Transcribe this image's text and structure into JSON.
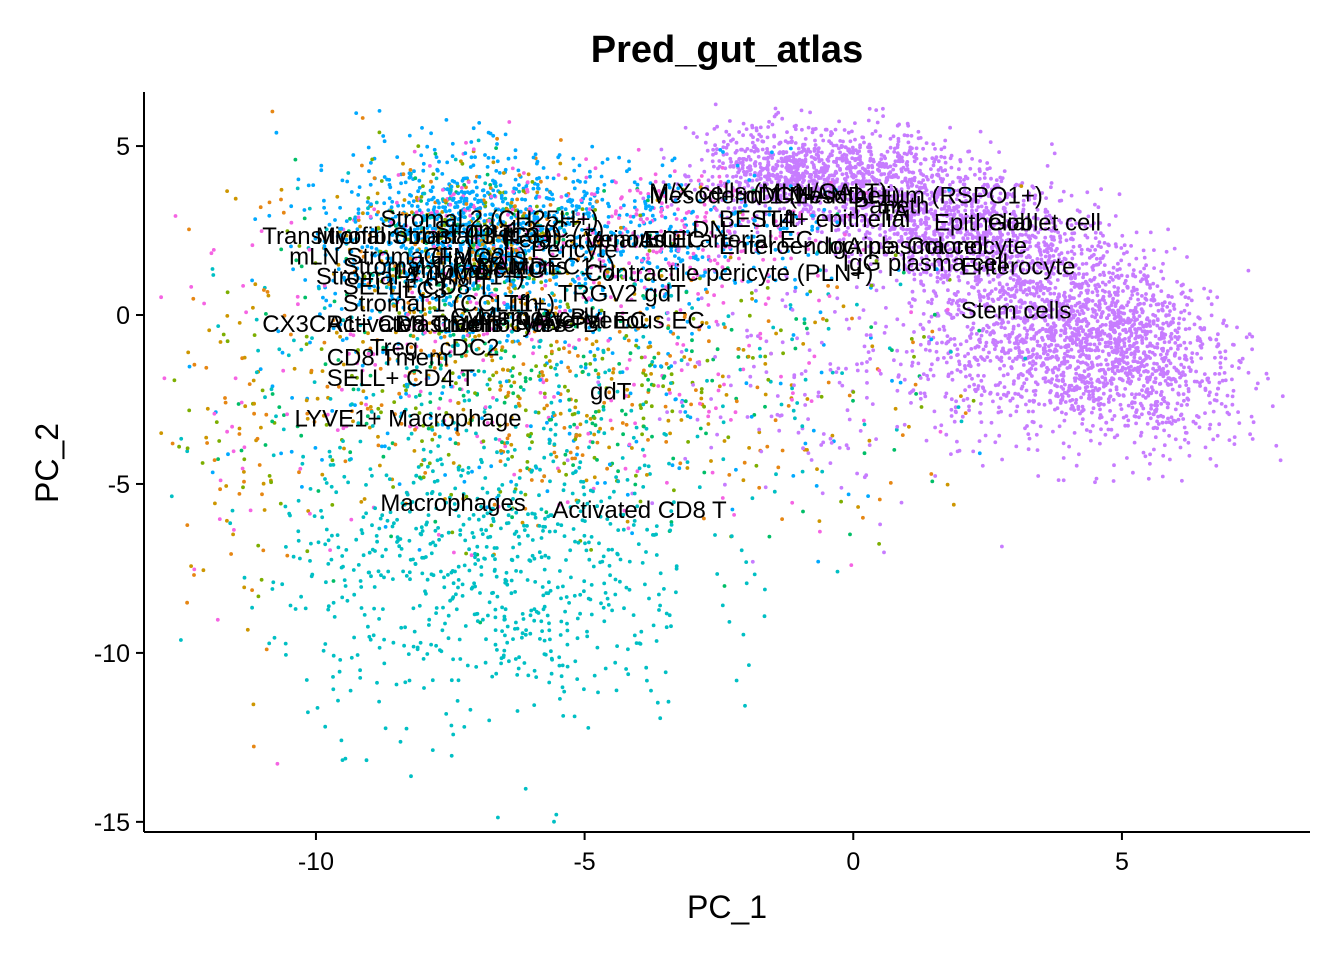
{
  "chart_data": {
    "type": "scatter",
    "title": "Pred_gut_atlas",
    "xlabel": "PC_1",
    "ylabel": "PC_2",
    "xlim": [
      -13.2,
      8.5
    ],
    "ylim": [
      -15.3,
      6.6
    ],
    "xticks": [
      -10,
      -5,
      0,
      5
    ],
    "yticks": [
      5,
      0,
      -5,
      -10,
      -15
    ],
    "x_tick_labels": [
      "-10",
      "-5",
      "0",
      "5"
    ],
    "y_tick_labels": [
      "5",
      "0",
      "-5",
      "-10",
      "-15"
    ],
    "grid": false,
    "legend": "none",
    "point_colors": {
      "enterocyte_stem": "#C77CFF",
      "macrophage": "#00BFC4",
      "stromal": "#00A9FF",
      "mixed_pink": "#F564E3",
      "mixed_orange": "#E68613",
      "mixed_olive": "#CD9600",
      "mixed_green": "#7CAE00",
      "mixed_teal": "#00BE67"
    },
    "cluster_labels": [
      {
        "text": "M/X cells (MLN/GALT)",
        "x": -3.8,
        "y": 3.4
      },
      {
        "text": "Mesoderm 1 (HAND1+)",
        "x": -3.8,
        "y": 3.3
      },
      {
        "text": "cDC1",
        "x": -2.0,
        "y": 3.3
      },
      {
        "text": "Mesothelium (RSPO1+)",
        "x": -1.2,
        "y": 3.3
      },
      {
        "text": "Paneth",
        "x": 0.0,
        "y": 3.0
      },
      {
        "text": "TA",
        "x": 0.5,
        "y": 2.8
      },
      {
        "text": "Epithelial",
        "x": 1.5,
        "y": 2.5
      },
      {
        "text": "Goblet cell",
        "x": 2.5,
        "y": 2.5
      },
      {
        "text": "DN",
        "x": -3.0,
        "y": 2.3
      },
      {
        "text": "BEST4+ epithelial",
        "x": -2.5,
        "y": 2.6
      },
      {
        "text": "Tuft",
        "x": -1.8,
        "y": 2.6
      },
      {
        "text": "Stromal 2 (CH25H+)",
        "x": -8.8,
        "y": 2.6
      },
      {
        "text": "Stromal 3 (C7+)",
        "x": -7.8,
        "y": 2.3
      },
      {
        "text": "Transitional Stromal 3 (C3+)",
        "x": -11.0,
        "y": 2.1
      },
      {
        "text": "Myofibroblast (HHIP+)",
        "x": -10.0,
        "y": 2.1
      },
      {
        "text": "Fetal arterial EC",
        "x": -6.5,
        "y": 2.0
      },
      {
        "text": "Venous EC",
        "x": -5.0,
        "y": 2.0
      },
      {
        "text": "Adult arterial EC",
        "x": -4.0,
        "y": 2.0
      },
      {
        "text": "Enteroendocrine",
        "x": -2.5,
        "y": 1.8
      },
      {
        "text": "Colonocyte",
        "x": 1.0,
        "y": 1.8
      },
      {
        "text": "IgA plasma cell",
        "x": -0.5,
        "y": 1.8
      },
      {
        "text": "Pericyte",
        "x": -6.0,
        "y": 1.7
      },
      {
        "text": "Contractile pericyte (PLN+)",
        "x": -5.0,
        "y": 1.0
      },
      {
        "text": "mLN Stroma (FMO2+)",
        "x": -10.5,
        "y": 1.5
      },
      {
        "text": "Stromal 1 (ADAMDEC1+)",
        "x": -9.5,
        "y": 1.2
      },
      {
        "text": "Stromal 4 (MMP1+)",
        "x": -10.0,
        "y": 0.9
      },
      {
        "text": "Lymphatic EC",
        "x": -8.5,
        "y": 1.1
      },
      {
        "text": "Glial cells",
        "x": -8.0,
        "y": 1.5
      },
      {
        "text": "Neurons",
        "x": -7.0,
        "y": 1.2
      },
      {
        "text": "IgG plasma cell",
        "x": -0.2,
        "y": 1.3
      },
      {
        "text": "Enterocyte",
        "x": 2.0,
        "y": 1.2
      },
      {
        "text": "Stem cells",
        "x": 2.0,
        "y": -0.1
      },
      {
        "text": "SELL+ CD8 T",
        "x": -9.5,
        "y": 0.6
      },
      {
        "text": "ILC3",
        "x": -8.5,
        "y": 0.5
      },
      {
        "text": "TRGV2 gdT",
        "x": -5.5,
        "y": 0.4
      },
      {
        "text": "Stromal 1 (CCL11+)",
        "x": -9.5,
        "y": 0.1
      },
      {
        "text": "Tfh",
        "x": -6.5,
        "y": 0.1
      },
      {
        "text": "CX3CR1+ CD8 Tmem",
        "x": -11.0,
        "y": -0.5
      },
      {
        "text": "Activated CD4 T",
        "x": -9.8,
        "y": -0.5
      },
      {
        "text": "Mast cells",
        "x": -8.5,
        "y": -0.5
      },
      {
        "text": "Monocytes",
        "x": -7.5,
        "y": -0.5
      },
      {
        "text": "Memory B",
        "x": -7.0,
        "y": -0.3
      },
      {
        "text": "Naive B",
        "x": -6.3,
        "y": -0.5
      },
      {
        "text": "Cycling B cell",
        "x": -7.5,
        "y": -0.3
      },
      {
        "text": "Arterial EC",
        "x": -6.0,
        "y": -0.4
      },
      {
        "text": "Venous EC",
        "x": -5.0,
        "y": -0.4
      },
      {
        "text": "Treg",
        "x": -9.0,
        "y": -1.2
      },
      {
        "text": "cDC2",
        "x": -7.7,
        "y": -1.2
      },
      {
        "text": "CD8 Tmem",
        "x": -9.8,
        "y": -1.5
      },
      {
        "text": "SELL+ CD4 T",
        "x": -9.8,
        "y": -2.1
      },
      {
        "text": "gdT",
        "x": -4.9,
        "y": -2.5
      },
      {
        "text": "LYVE1+ Macrophage",
        "x": -10.4,
        "y": -3.3
      },
      {
        "text": "Macrophages",
        "x": -8.8,
        "y": -5.8
      },
      {
        "text": "Activated CD8 T",
        "x": -5.6,
        "y": -6.0
      }
    ]
  }
}
